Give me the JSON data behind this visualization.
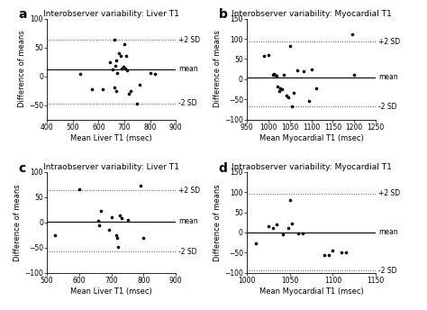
{
  "panel_a": {
    "title": "Interobserver variability: Liver T1",
    "xlabel": "Mean Liver T1 (msec)",
    "ylabel": "Difference of means",
    "xlim": [
      400,
      900
    ],
    "ylim": [
      -75,
      100
    ],
    "xticks": [
      400,
      500,
      600,
      700,
      800,
      900
    ],
    "yticks": [
      -50,
      0,
      50,
      100
    ],
    "mean_line": 12,
    "upper_sd": 63,
    "lower_sd": -47,
    "points_x": [
      530,
      575,
      615,
      645,
      655,
      660,
      662,
      665,
      667,
      670,
      673,
      678,
      685,
      688,
      695,
      700,
      705,
      708,
      712,
      718,
      725,
      748,
      758,
      800,
      820
    ],
    "points_y": [
      4,
      -23,
      -22,
      24,
      12,
      -20,
      64,
      18,
      -25,
      28,
      5,
      40,
      35,
      14,
      16,
      55,
      14,
      35,
      10,
      -30,
      -25,
      -48,
      -15,
      5,
      4
    ],
    "label": "a"
  },
  "panel_b": {
    "title": "Interobserver variability: Myocardial T1",
    "xlabel": "Mean Myocardial T1 (msec)",
    "ylabel": "Difference of means",
    "xlim": [
      950,
      1250
    ],
    "ylim": [
      -100,
      150
    ],
    "xticks": [
      950,
      1000,
      1050,
      1100,
      1150,
      1200,
      1250
    ],
    "yticks": [
      -100,
      -50,
      0,
      50,
      100,
      150
    ],
    "mean_line": 5,
    "upper_sd": 93,
    "lower_sd": -68,
    "points_x": [
      990,
      1000,
      1010,
      1012,
      1015,
      1020,
      1022,
      1025,
      1028,
      1032,
      1037,
      1042,
      1047,
      1050,
      1055,
      1060,
      1068,
      1082,
      1095,
      1100,
      1112,
      1195,
      1200
    ],
    "points_y": [
      57,
      60,
      10,
      14,
      10,
      8,
      -18,
      -30,
      -22,
      -25,
      10,
      -40,
      -45,
      82,
      -68,
      -35,
      22,
      20,
      -55,
      25,
      -22,
      112,
      10
    ],
    "label": "b"
  },
  "panel_c": {
    "title": "Intraobserver variability: Liver T1",
    "xlabel": "Mean Liver T1 (msec)",
    "ylabel": "Difference of means",
    "xlim": [
      500,
      900
    ],
    "ylim": [
      -100,
      100
    ],
    "xticks": [
      500,
      600,
      700,
      800,
      900
    ],
    "yticks": [
      -100,
      -50,
      0,
      50,
      100
    ],
    "mean_line": 2,
    "upper_sd": 63,
    "lower_sd": -58,
    "points_x": [
      525,
      600,
      660,
      663,
      668,
      692,
      700,
      715,
      718,
      720,
      727,
      732,
      752,
      790,
      800
    ],
    "points_y": [
      -25,
      65,
      3,
      -5,
      22,
      -15,
      10,
      -25,
      -30,
      -48,
      13,
      8,
      5,
      72,
      -30
    ],
    "label": "c"
  },
  "panel_d": {
    "title": "Intraobserver variability: Myocardial T1",
    "xlabel": "Mean Myocardial T1 (msec)",
    "ylabel": "Difference of means",
    "xlim": [
      1000,
      1150
    ],
    "ylim": [
      -100,
      150
    ],
    "xticks": [
      1000,
      1050,
      1100,
      1150
    ],
    "yticks": [
      -100,
      -50,
      0,
      50,
      100,
      150
    ],
    "mean_line": 0,
    "upper_sd": 97,
    "lower_sd": -95,
    "points_x": [
      1010,
      1025,
      1030,
      1035,
      1042,
      1048,
      1050,
      1052,
      1060,
      1065,
      1090,
      1095,
      1100,
      1110,
      1115
    ],
    "points_y": [
      -28,
      15,
      10,
      20,
      -5,
      10,
      80,
      22,
      -2,
      -2,
      -55,
      -55,
      -45,
      -50,
      -50
    ],
    "label": "d"
  },
  "dot_color": "#111111",
  "dot_size": 7,
  "line_color": "#111111",
  "sd_line_color": "#555555",
  "title_fontsize": 6.5,
  "axis_label_fontsize": 6.0,
  "tick_fontsize": 5.5,
  "annot_fontsize": 5.5,
  "panel_label_fontsize": 10
}
